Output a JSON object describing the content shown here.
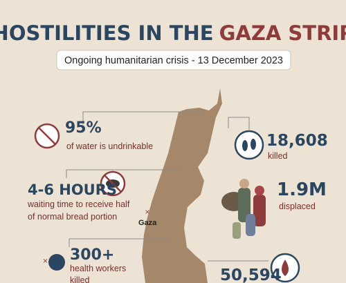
{
  "header": {
    "title_part1": "HOSTILITIES IN THE",
    "title_part2": "GAZA STRIP",
    "subtitle": "Ongoing humanitarian crisis - 13 December 2023"
  },
  "map": {
    "label": "Gaza"
  },
  "stats_left": [
    {
      "figure": "95%",
      "lines": [
        "of water is undrinkable"
      ]
    },
    {
      "figure": "4-6 HOURS",
      "lines": [
        "waiting time to receive half",
        "of normal bread portion"
      ]
    },
    {
      "figure": "300+",
      "lines": [
        "health workers",
        "killed"
      ]
    }
  ],
  "stats_right": [
    {
      "figure": "18,608",
      "lines": [
        "killed"
      ]
    },
    {
      "figure": "1.9M",
      "lines": [
        "displaced"
      ]
    },
    {
      "figure": "50,594",
      "lines": []
    }
  ]
}
